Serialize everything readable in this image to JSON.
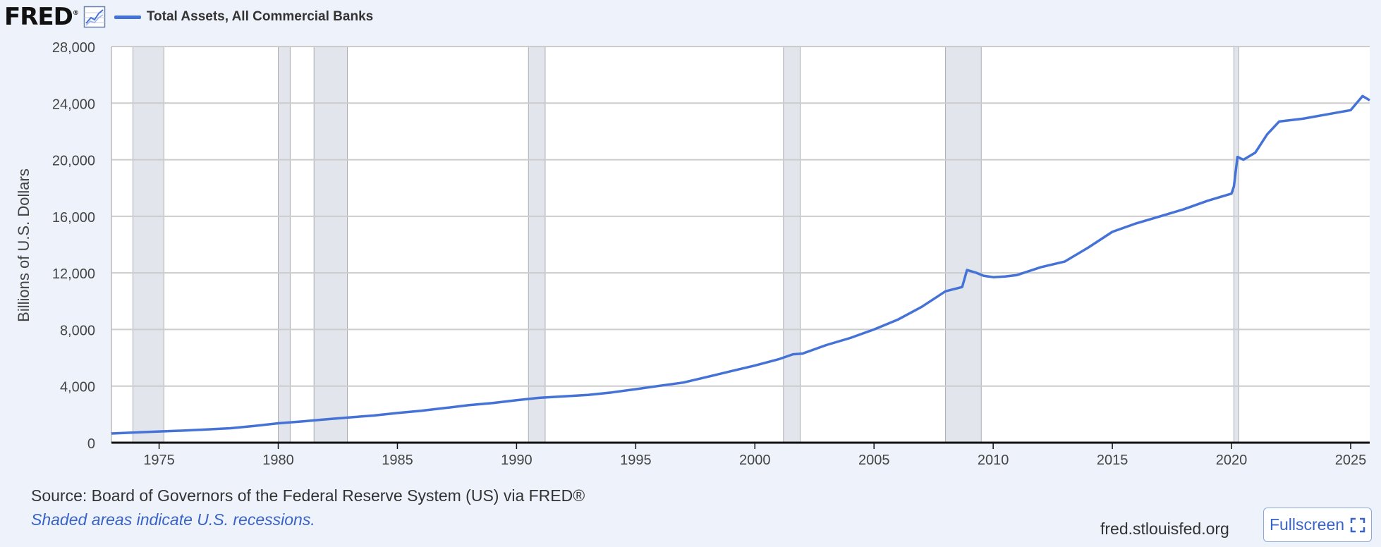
{
  "header": {
    "logo": "FRED",
    "logo_mark": "®",
    "chart_icon": "line-chart-icon",
    "series_title": "Total Assets, All Commercial Banks"
  },
  "footer": {
    "source": "Source: Board of Governors of the Federal Reserve System (US) via FRED®",
    "note": "Shaded areas indicate U.S. recessions.",
    "site": "fred.stlouisfed.org",
    "fullscreen_label": "Fullscreen",
    "fullscreen_icon": "fullscreen-icon"
  },
  "colors": {
    "series": "#4572d7",
    "recession": "#e2e6ec",
    "background": "#eef3fb",
    "plot_bg": "#ffffff",
    "grid": "#cccccc"
  },
  "chart_data": {
    "type": "line",
    "title": "Total Assets, All Commercial Banks",
    "xlabel": "",
    "ylabel": "Billions of U.S. Dollars",
    "xlim": [
      1973.0,
      2025.8
    ],
    "ylim": [
      0,
      28000
    ],
    "yticks": [
      0,
      4000,
      8000,
      12000,
      16000,
      20000,
      24000,
      28000
    ],
    "ytick_labels": [
      "0",
      "4,000",
      "8,000",
      "12,000",
      "16,000",
      "20,000",
      "24,000",
      "28,000"
    ],
    "xticks": [
      1975,
      1980,
      1985,
      1990,
      1995,
      2000,
      2005,
      2010,
      2015,
      2020,
      2025
    ],
    "xtick_labels": [
      "1975",
      "1980",
      "1985",
      "1990",
      "1995",
      "2000",
      "2005",
      "2010",
      "2015",
      "2020",
      "2025"
    ],
    "grid": true,
    "recessions": [
      [
        1973.9,
        1975.2
      ],
      [
        1980.0,
        1980.5
      ],
      [
        1981.5,
        1982.9
      ],
      [
        1990.5,
        1991.2
      ],
      [
        2001.2,
        2001.9
      ],
      [
        2008.0,
        2009.5
      ],
      [
        2020.1,
        2020.3
      ]
    ],
    "series": [
      {
        "name": "Total Assets, All Commercial Banks",
        "x": [
          1973.0,
          1974.0,
          1975.0,
          1976.0,
          1977.0,
          1978.0,
          1979.0,
          1980.0,
          1981.0,
          1982.0,
          1983.0,
          1984.0,
          1985.0,
          1986.0,
          1987.0,
          1988.0,
          1989.0,
          1990.0,
          1991.0,
          1992.0,
          1993.0,
          1994.0,
          1995.0,
          1996.0,
          1997.0,
          1998.0,
          1999.0,
          2000.0,
          2001.0,
          2001.6,
          2002.0,
          2003.0,
          2004.0,
          2005.0,
          2006.0,
          2007.0,
          2008.0,
          2008.7,
          2008.9,
          2009.3,
          2009.6,
          2010.0,
          2010.5,
          2011.0,
          2012.0,
          2013.0,
          2014.0,
          2015.0,
          2016.0,
          2017.0,
          2018.0,
          2019.0,
          2020.0,
          2020.1,
          2020.25,
          2020.5,
          2021.0,
          2021.5,
          2022.0,
          2023.0,
          2024.0,
          2025.0,
          2025.5,
          2025.8
        ],
        "values": [
          650,
          720,
          790,
          850,
          930,
          1020,
          1180,
          1370,
          1500,
          1650,
          1790,
          1920,
          2100,
          2250,
          2450,
          2650,
          2800,
          3000,
          3180,
          3280,
          3380,
          3550,
          3780,
          4020,
          4250,
          4650,
          5050,
          5450,
          5900,
          6250,
          6300,
          6900,
          7400,
          8000,
          8700,
          9600,
          10700,
          11000,
          12200,
          12000,
          11800,
          11700,
          11750,
          11850,
          12400,
          12800,
          13800,
          14900,
          15500,
          16000,
          16500,
          17100,
          17600,
          18100,
          20200,
          20000,
          20500,
          21800,
          22700,
          22900,
          23200,
          23500,
          24500,
          24200
        ]
      }
    ]
  }
}
